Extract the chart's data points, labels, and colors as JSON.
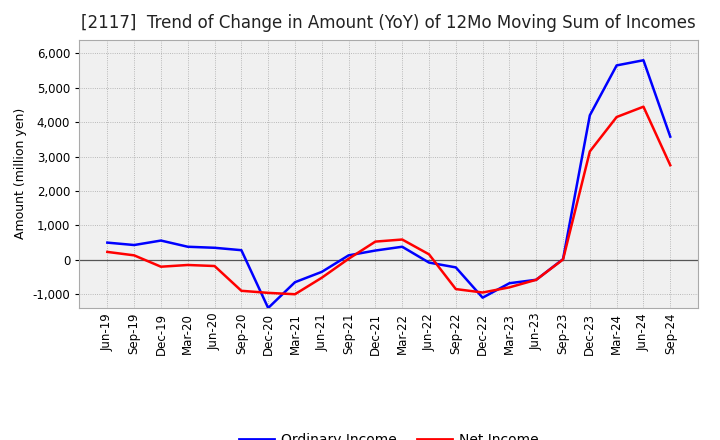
{
  "title": "[2117]  Trend of Change in Amount (YoY) of 12Mo Moving Sum of Incomes",
  "ylabel": "Amount (million yen)",
  "background_color": "#ffffff",
  "plot_bg_color": "#f0f0f0",
  "grid_color": "#888888",
  "x_labels": [
    "Jun-19",
    "Sep-19",
    "Dec-19",
    "Mar-20",
    "Jun-20",
    "Sep-20",
    "Dec-20",
    "Mar-21",
    "Jun-21",
    "Sep-21",
    "Dec-21",
    "Mar-22",
    "Jun-22",
    "Sep-22",
    "Dec-22",
    "Mar-23",
    "Jun-23",
    "Sep-23",
    "Dec-23",
    "Mar-24",
    "Jun-24",
    "Sep-24"
  ],
  "ordinary_income": [
    500,
    430,
    560,
    380,
    350,
    280,
    -1400,
    -650,
    -350,
    130,
    270,
    380,
    -80,
    -220,
    -1100,
    -680,
    -580,
    20,
    4200,
    5650,
    5800,
    3580
  ],
  "net_income": [
    230,
    130,
    -200,
    -150,
    -180,
    -900,
    -960,
    -1000,
    -520,
    30,
    530,
    590,
    160,
    -850,
    -950,
    -800,
    -580,
    10,
    3150,
    4150,
    4450,
    2750
  ],
  "ordinary_color": "#0000ff",
  "net_color": "#ff0000",
  "ylim": [
    -1400,
    6400
  ],
  "yticks": [
    -1000,
    0,
    1000,
    2000,
    3000,
    4000,
    5000,
    6000
  ],
  "line_width": 1.8,
  "title_fontsize": 12,
  "axis_fontsize": 9,
  "tick_fontsize": 8.5,
  "legend_fontsize": 10
}
